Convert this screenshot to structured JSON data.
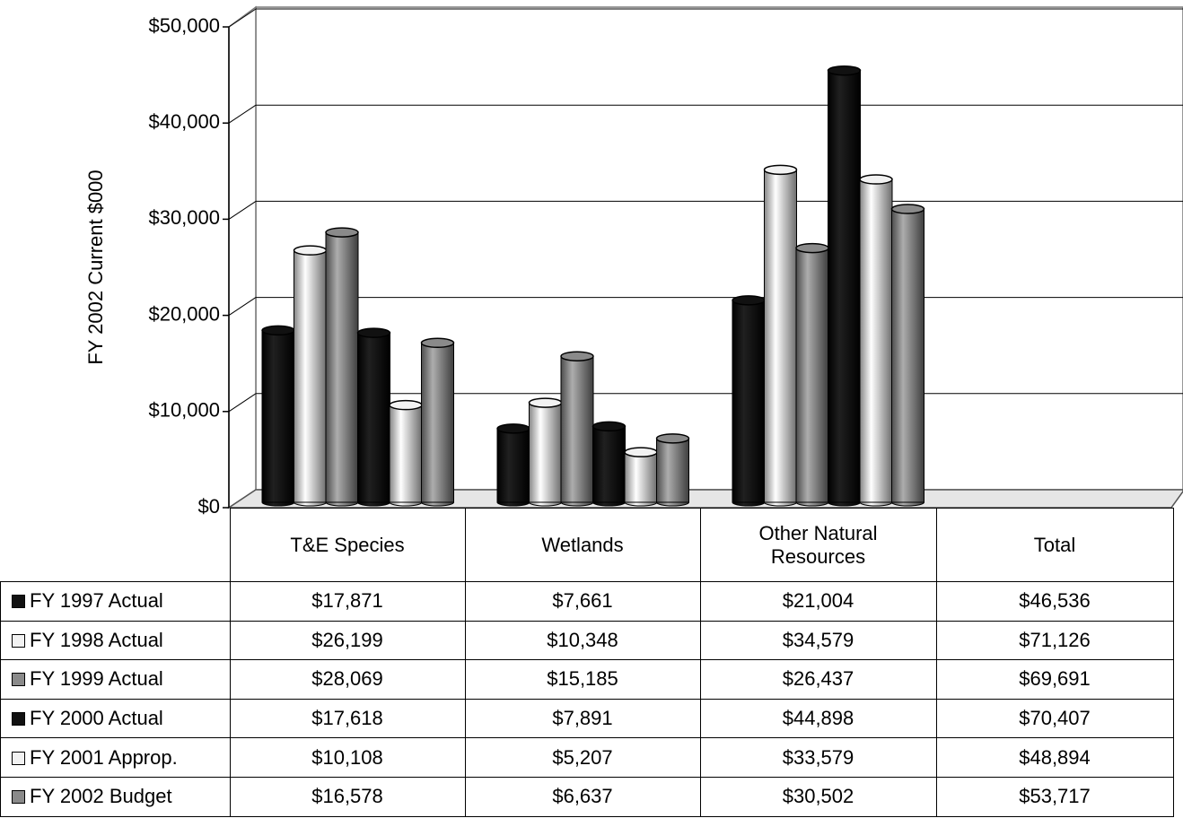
{
  "chart_data": {
    "type": "bar",
    "y_label": "FY 2002 Current $000",
    "categories": [
      "T&E Species",
      "Wetlands",
      "Other Natural Resources"
    ],
    "total_heading": "Total",
    "ylim": [
      0,
      50000
    ],
    "yticks": [
      {
        "value": 0,
        "label": "$0"
      },
      {
        "value": 10000,
        "label": "$10,000"
      },
      {
        "value": 20000,
        "label": "$20,000"
      },
      {
        "value": 30000,
        "label": "$30,000"
      },
      {
        "value": 40000,
        "label": "$40,000"
      },
      {
        "value": 50000,
        "label": "$50,000"
      }
    ],
    "grid": true,
    "series": [
      {
        "name": "FY 1997 Actual",
        "color": "#111111",
        "values": [
          17871,
          7661,
          21004
        ],
        "value_labels": [
          "$17,871",
          "$7,661",
          "$21,004"
        ],
        "total": "$46,536"
      },
      {
        "name": "FY 1998 Actual",
        "color": "#f2f2f2",
        "values": [
          26199,
          10348,
          34579
        ],
        "value_labels": [
          "$26,199",
          "$10,348",
          "$34,579"
        ],
        "total": "$71,126"
      },
      {
        "name": "FY 1999 Actual",
        "color": "#8a8a8a",
        "values": [
          28069,
          15185,
          26437
        ],
        "value_labels": [
          "$28,069",
          "$15,185",
          "$26,437"
        ],
        "total": "$69,691"
      },
      {
        "name": "FY 2000 Actual",
        "color": "#111111",
        "values": [
          17618,
          7891,
          44898
        ],
        "value_labels": [
          "$17,618",
          "$7,891",
          "$44,898"
        ],
        "total": "$70,407"
      },
      {
        "name": "FY 2001 Approp.",
        "color": "#f2f2f2",
        "values": [
          10108,
          5207,
          33579
        ],
        "value_labels": [
          "$10,108",
          "$5,207",
          "$33,579"
        ],
        "total": "$48,894"
      },
      {
        "name": "FY 2002 Budget",
        "color": "#8a8a8a",
        "values": [
          16578,
          6637,
          30502
        ],
        "value_labels": [
          "$16,578",
          "$6,637",
          "$30,502"
        ],
        "total": "$53,717"
      }
    ]
  }
}
